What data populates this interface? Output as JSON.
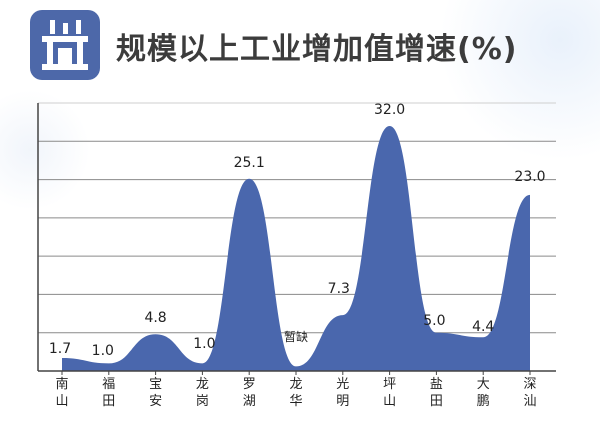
{
  "header": {
    "title": "规模以上工业增加值增速(%)",
    "icon": "factory-icon"
  },
  "colors": {
    "area_fill": "#4a67ad",
    "icon_tile": "#4d68a9",
    "gridline": "#8a8a8a",
    "axis": "#444444",
    "label_text": "#222222"
  },
  "chart_data": {
    "type": "area",
    "title": "规模以上工业增加值增速(%)",
    "xlabel": "",
    "ylabel": "",
    "ylim": [
      0,
      35
    ],
    "grid": true,
    "categories": [
      "南山",
      "福田",
      "宝安",
      "龙岗",
      "罗湖",
      "龙华",
      "光明",
      "坪山",
      "盐田",
      "大鹏",
      "深汕"
    ],
    "values": [
      1.7,
      1.0,
      4.8,
      1.0,
      25.1,
      null,
      7.3,
      32.0,
      5.0,
      4.4,
      23.0
    ],
    "data_labels": [
      "1.7",
      "1.0",
      "4.8",
      "1.0",
      "25.1",
      "暂缺",
      "7.3",
      "32.0",
      "5.0",
      "4.4",
      "23.0"
    ]
  }
}
